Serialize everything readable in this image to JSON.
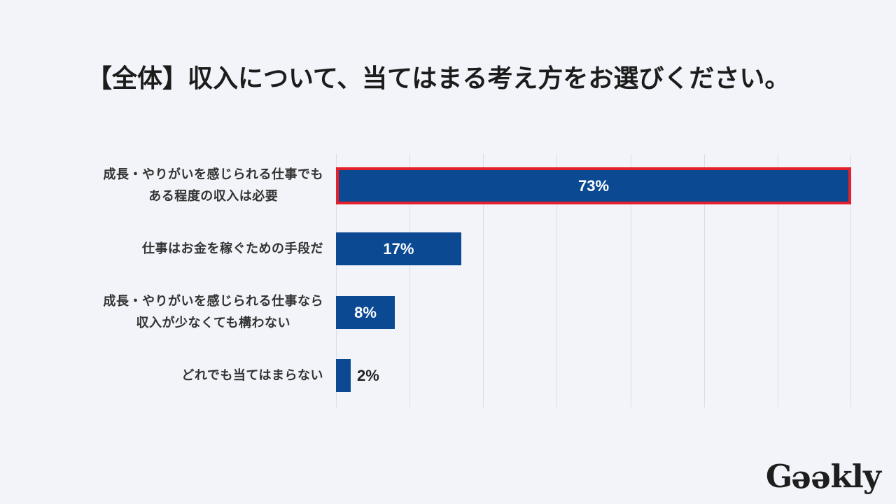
{
  "page": {
    "background_color": "#f2f4f9"
  },
  "chart_data": {
    "type": "bar",
    "orientation": "horizontal",
    "title": "【全体】収入について、当てはまる考え方をお選びください。",
    "categories": [
      "成長・やりがいを感じられる仕事でも\nある程度の収入は必要",
      "仕事はお金を稼ぐための手段だ",
      "成長・やりがいを感じられる仕事なら\n収入が少なくても構わない",
      "どれでも当てはまらない"
    ],
    "values": [
      73,
      17,
      8,
      2
    ],
    "value_labels": [
      "73%",
      "17%",
      "8%",
      "2%"
    ],
    "unit": "%",
    "xlabel": "",
    "ylabel": "",
    "xlim": [
      0,
      70
    ],
    "x_tick_step": 10,
    "x_tick_labels_shown": false,
    "grid": true,
    "legend": "none",
    "bar_color": "#0b4a93",
    "highlight": {
      "index": 0,
      "color": "#e3202b"
    }
  },
  "logo": {
    "text": "Geekly"
  }
}
